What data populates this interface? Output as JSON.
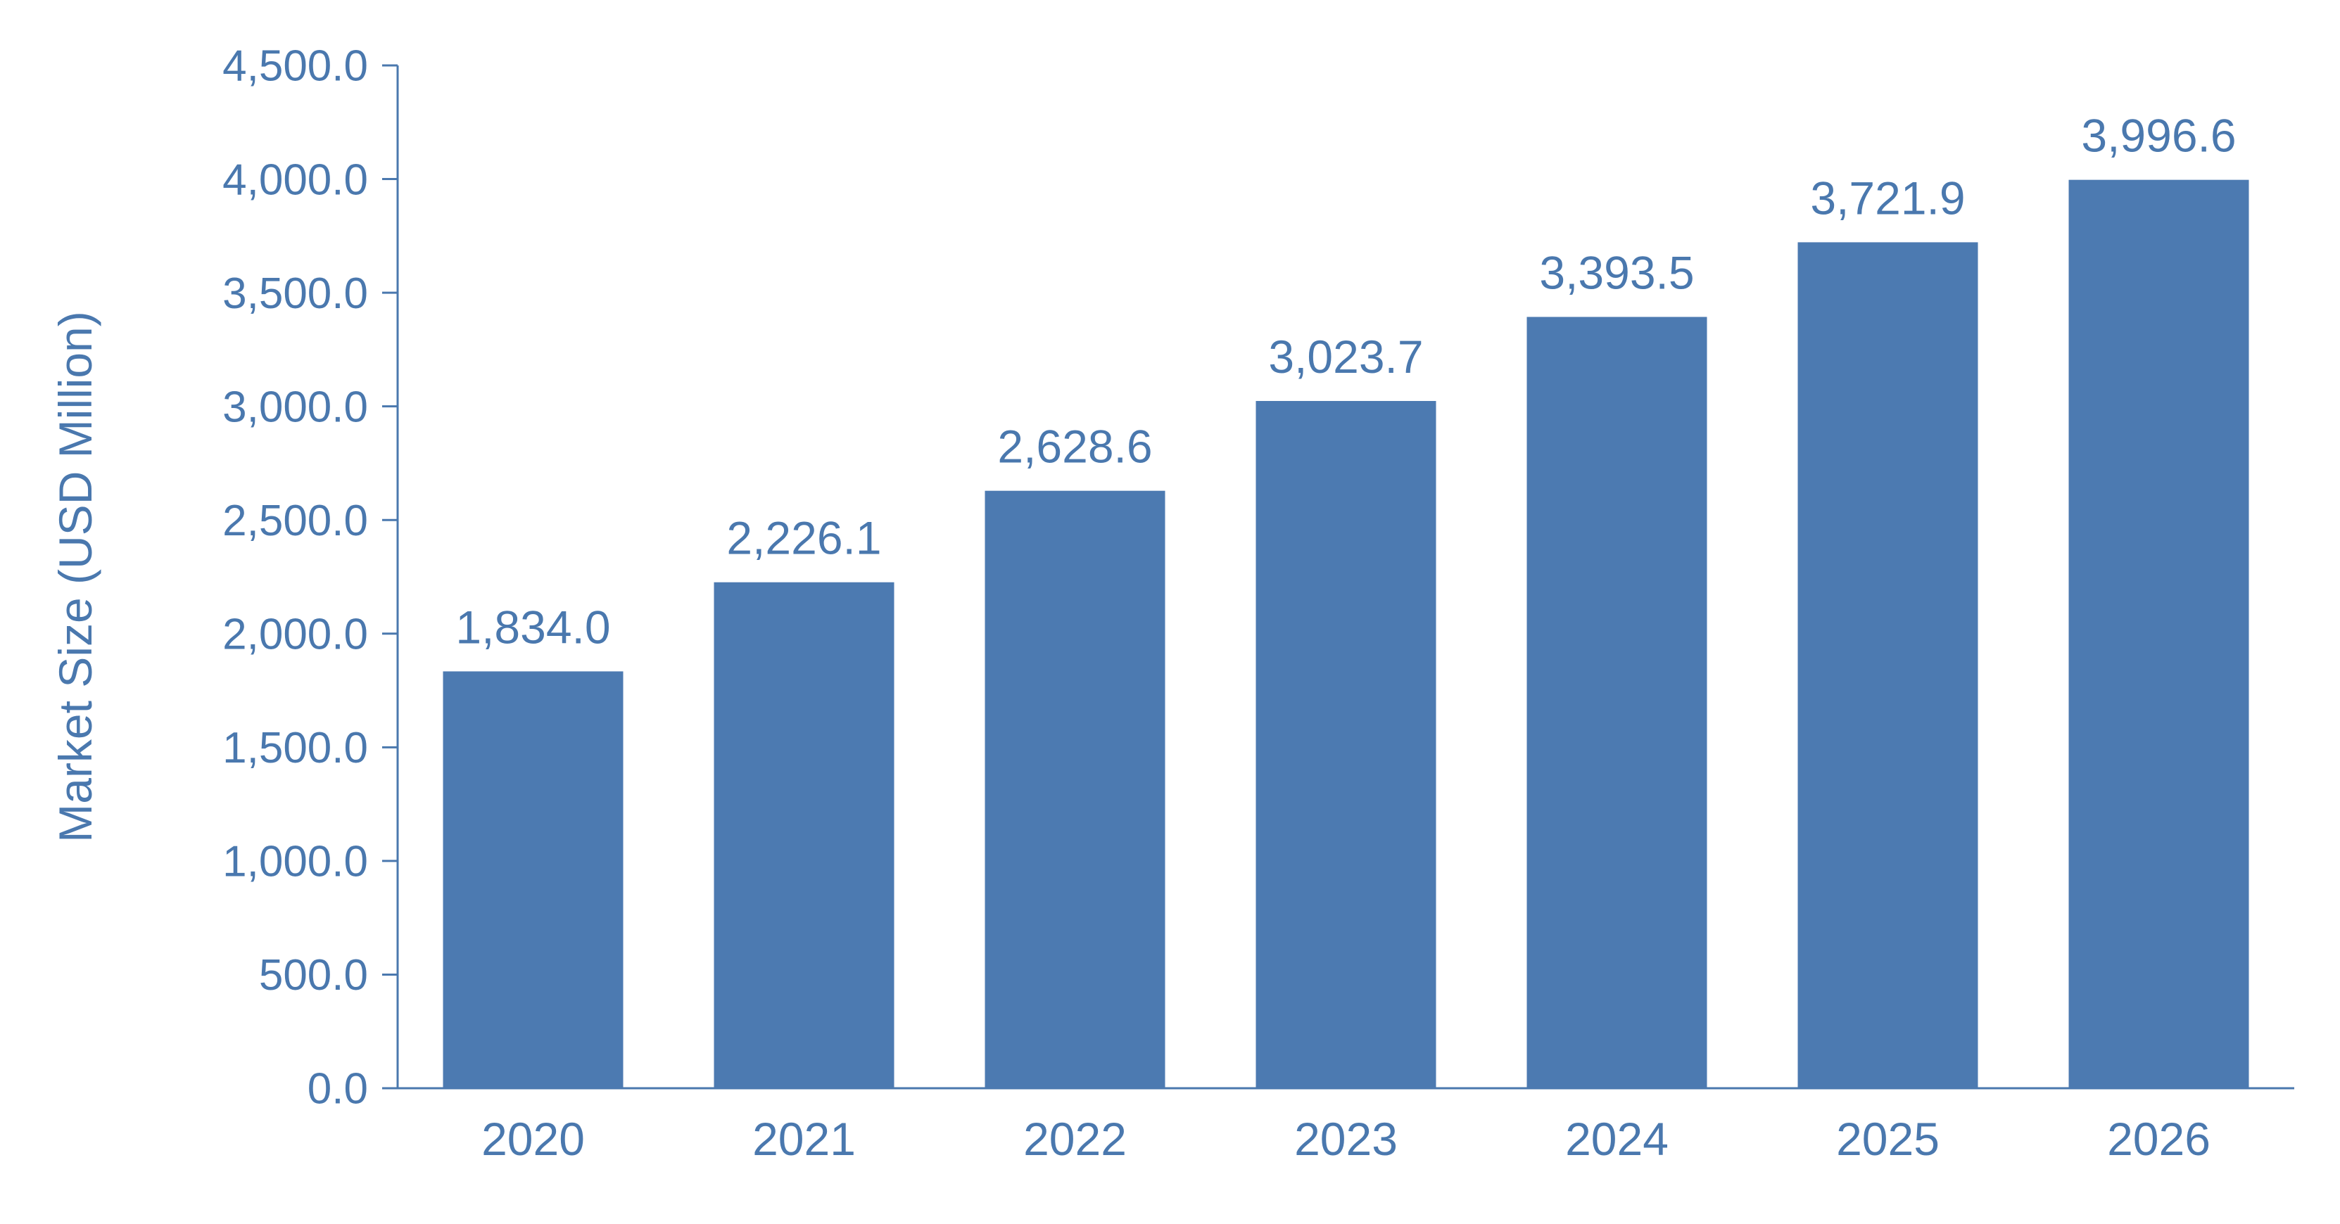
{
  "chart_data": {
    "type": "bar",
    "categories": [
      "2020",
      "2021",
      "2022",
      "2023",
      "2024",
      "2025",
      "2026"
    ],
    "values": [
      1834.0,
      2226.1,
      2628.6,
      3023.7,
      3393.5,
      3721.9,
      3996.6
    ],
    "value_labels": [
      "1,834.0",
      "2,226.1",
      "2,628.6",
      "3,023.7",
      "3,393.5",
      "3,721.9",
      "3,996.6"
    ],
    "title": "",
    "xlabel": "",
    "ylabel": "Market Size (USD Million)",
    "ylim": [
      0,
      4500
    ],
    "yticks": [
      0,
      500,
      1000,
      1500,
      2000,
      2500,
      3000,
      3500,
      4000,
      4500
    ],
    "ytick_labels": [
      "0.0",
      "500.0",
      "1,000.0",
      "1,500.0",
      "2,000.0",
      "2,500.0",
      "3,000.0",
      "3,500.0",
      "4,000.0",
      "4,500.0"
    ],
    "grid": false,
    "legend": "none",
    "colors": {
      "bar": "#4c7ab1",
      "text": "#4a78ae",
      "axis": "#4a78ae"
    }
  }
}
